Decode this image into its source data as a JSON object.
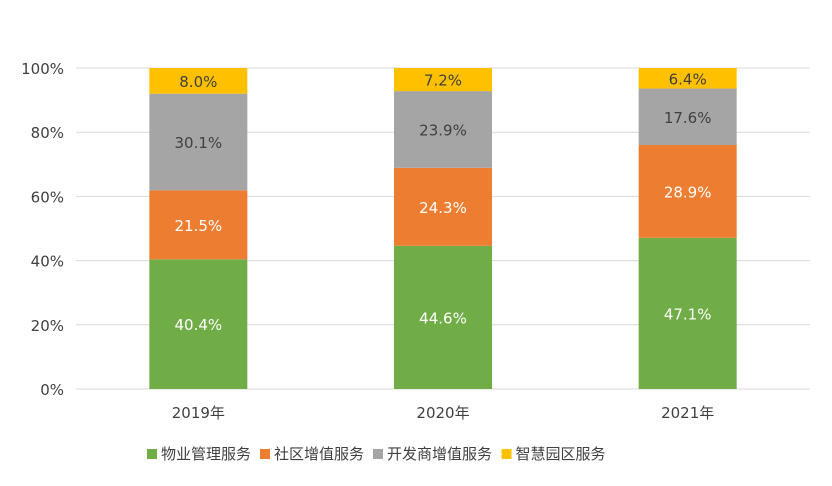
{
  "chart_data": {
    "type": "bar",
    "stacked": true,
    "title": "",
    "xlabel": "",
    "ylabel": "",
    "categories": [
      "2019年",
      "2020年",
      "2021年"
    ],
    "ylim": [
      0,
      100
    ],
    "yticks": [
      "0%",
      "20%",
      "40%",
      "60%",
      "80%",
      "100%"
    ],
    "grid": true,
    "legend_position": "bottom",
    "series": [
      {
        "name": "物业管理服务",
        "color": "#70ad47",
        "values": [
          40.4,
          44.6,
          47.1
        ],
        "labels": [
          "40.4%",
          "44.6%",
          "47.1%"
        ],
        "label_color": "#ffffff"
      },
      {
        "name": "社区增值服务",
        "color": "#ed7d31",
        "values": [
          21.5,
          24.3,
          28.9
        ],
        "labels": [
          "21.5%",
          "24.3%",
          "28.9%"
        ],
        "label_color": "#ffffff"
      },
      {
        "name": "开发商增值服务",
        "color": "#a5a5a5",
        "values": [
          30.1,
          23.9,
          17.6
        ],
        "labels": [
          "30.1%",
          "23.9%",
          "17.6%"
        ],
        "label_color": "#404040"
      },
      {
        "name": "智慧园区服务",
        "color": "#ffc000",
        "values": [
          8.0,
          7.2,
          6.4
        ],
        "labels": [
          "8.0%",
          "7.2%",
          "6.4%"
        ],
        "label_color": "#404040"
      }
    ]
  }
}
